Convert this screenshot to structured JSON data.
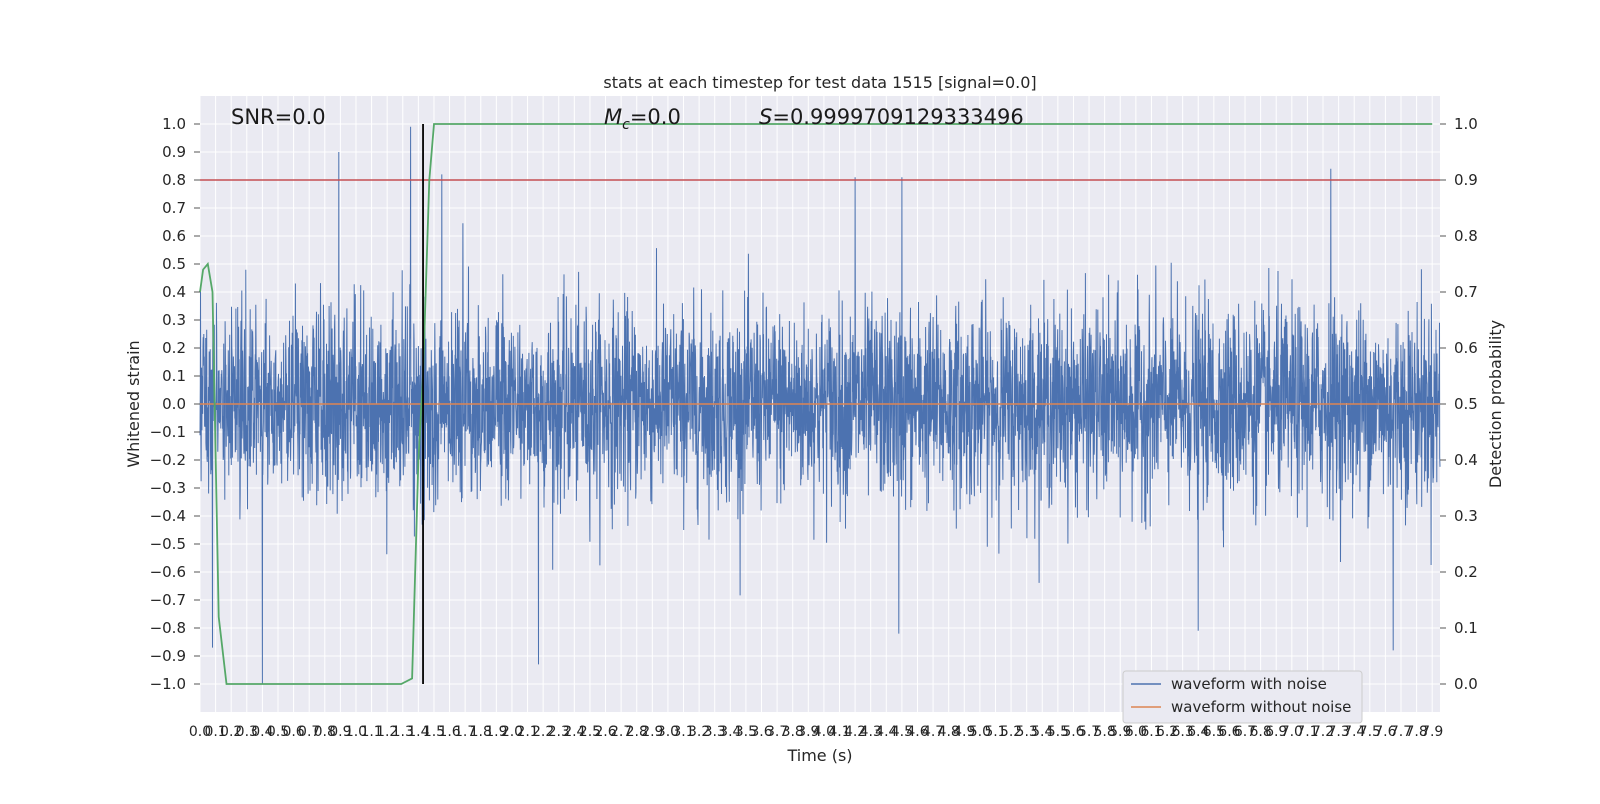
{
  "chart_data": {
    "type": "line",
    "title": "stats at each timestep for test data 1515 [signal=0.0]",
    "xlabel": "Time (s)",
    "ylabel_left": "Whitened strain",
    "ylabel_right": "Detection probability",
    "xlim": [
      0.0,
      7.95
    ],
    "ylim_left": [
      -1.1,
      1.1
    ],
    "ylim_right": [
      -0.05,
      1.05
    ],
    "grid": true,
    "legend_position": "lower-right",
    "annotations": {
      "snr": "SNR=0.0",
      "mc_symbol": "M",
      "mc_sub": "c",
      "mc_value": "=0.0",
      "s_symbol": "S",
      "s_value": "=0.9999709129333496"
    },
    "x_ticks": [
      "0.0",
      "0.1",
      "0.2",
      "0.3",
      "0.4",
      "0.5",
      "0.6",
      "0.7",
      "0.8",
      "0.9",
      "1.0",
      "1.1",
      "1.2",
      "1.3",
      "1.4",
      "1.5",
      "1.6",
      "1.7",
      "1.8",
      "1.9",
      "2.0",
      "2.1",
      "2.2",
      "2.3",
      "2.4",
      "2.5",
      "2.6",
      "2.7",
      "2.8",
      "2.9",
      "3.0",
      "3.1",
      "3.2",
      "3.3",
      "3.4",
      "3.5",
      "3.6",
      "3.7",
      "3.8",
      "3.9",
      "4.0",
      "4.1",
      "4.2",
      "4.3",
      "4.4",
      "4.5",
      "4.6",
      "4.7",
      "4.8",
      "4.9",
      "5.0",
      "5.1",
      "5.2",
      "5.3",
      "5.4",
      "5.5",
      "5.6",
      "5.7",
      "5.8",
      "5.9",
      "6.0",
      "6.1",
      "6.2",
      "6.3",
      "6.4",
      "6.5",
      "6.6",
      "6.7",
      "6.8",
      "6.9",
      "7.0",
      "7.1",
      "7.2",
      "7.3",
      "7.4",
      "7.5",
      "7.6",
      "7.7",
      "7.8",
      "7.9"
    ],
    "y_ticks_left": [
      "1.0",
      "0.9",
      "0.8",
      "0.7",
      "0.6",
      "0.5",
      "0.4",
      "0.3",
      "0.2",
      "0.1",
      "0.0",
      "-0.1",
      "-0.2",
      "-0.3",
      "-0.4",
      "-0.5",
      "-0.6",
      "-0.7",
      "-0.8",
      "-0.9",
      "-1.0"
    ],
    "y_ticks_right": [
      "1.0",
      "0.9",
      "0.8",
      "0.7",
      "0.6",
      "0.5",
      "0.4",
      "0.3",
      "0.2",
      "0.1",
      "0.0"
    ],
    "series": [
      {
        "name": "waveform with noise",
        "color": "#4c72b0",
        "axis": "left",
        "description_level": "dense noise roughly within +/-0.4 with spikes to about +/-0.9",
        "peaks": [
          {
            "x": 0.89,
            "y": 0.9
          },
          {
            "x": 1.35,
            "y": 0.99
          },
          {
            "x": 1.55,
            "y": 0.82
          },
          {
            "x": 4.2,
            "y": 0.81
          },
          {
            "x": 4.5,
            "y": 0.81
          },
          {
            "x": 7.25,
            "y": 0.84
          },
          {
            "x": 0.4,
            "y": -1.0
          },
          {
            "x": 2.17,
            "y": -0.93
          },
          {
            "x": 0.08,
            "y": -0.87
          },
          {
            "x": 7.65,
            "y": -0.88
          },
          {
            "x": 4.48,
            "y": -0.82
          },
          {
            "x": 6.4,
            "y": -0.81
          }
        ]
      },
      {
        "name": "waveform without noise",
        "color": "#dd8452",
        "axis": "left",
        "values_const": 0.0
      },
      {
        "name": "",
        "color": "#55a868",
        "axis": "right",
        "x": [
          0.0,
          0.02,
          0.05,
          0.08,
          0.12,
          0.17,
          0.25,
          0.5,
          1.0,
          1.2,
          1.29,
          1.36,
          1.4,
          1.43,
          1.47,
          1.5,
          7.9
        ],
        "y": [
          0.7,
          0.74,
          0.75,
          0.7,
          0.12,
          0.0,
          0.0,
          0.0,
          0.0,
          0.0,
          0.0,
          0.01,
          0.4,
          0.55,
          0.9,
          1.0,
          1.0
        ]
      }
    ],
    "threshold": {
      "value": 0.9,
      "axis": "right",
      "color": "#c44e52"
    },
    "marker_line": {
      "x": 1.43,
      "color": "#000000"
    }
  }
}
